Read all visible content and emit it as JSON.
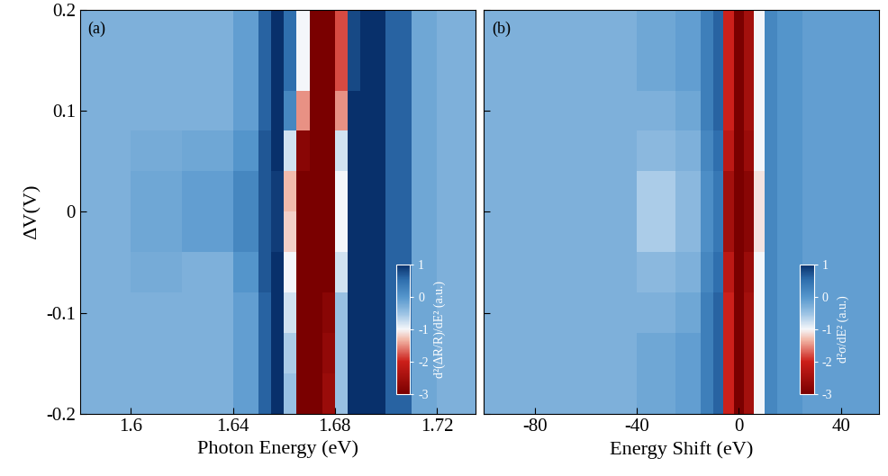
{
  "chart_data": [
    {
      "type": "heatmap",
      "panel_label": "(a)",
      "x_label": "Photon Energy (eV)",
      "y_label": "ΔV(V)",
      "xlim": [
        1.58,
        1.735
      ],
      "xticks": [
        1.6,
        1.64,
        1.68,
        1.72
      ],
      "ylim": [
        -0.2,
        0.2
      ],
      "yticks": [
        -0.2,
        -0.1,
        0,
        0.1,
        0.2
      ],
      "x_edges": [
        1.58,
        1.6,
        1.62,
        1.64,
        1.65,
        1.655,
        1.66,
        1.665,
        1.67,
        1.675,
        1.68,
        1.685,
        1.69,
        1.7,
        1.71,
        1.72,
        1.735
      ],
      "y_edges": [
        -0.2,
        -0.16,
        -0.12,
        -0.08,
        -0.04,
        0,
        0.04,
        0.08,
        0.12,
        0.16,
        0.2
      ],
      "cells": [
        [
          -0.3,
          -0.3,
          -0.3,
          -0.1,
          0.6,
          1,
          -0.5,
          -3,
          -3,
          -2.6,
          -0.5,
          1,
          1,
          0.6,
          -0.2,
          -0.3
        ],
        [
          -0.3,
          -0.3,
          -0.3,
          -0.1,
          0.6,
          1,
          -0.6,
          -3,
          -3,
          -2.7,
          -0.5,
          1,
          1,
          0.6,
          -0.2,
          -0.3
        ],
        [
          -0.3,
          -0.3,
          -0.3,
          -0.1,
          0.6,
          1,
          -0.8,
          -3,
          -3,
          -2.8,
          -0.5,
          1,
          1,
          0.6,
          -0.2,
          -0.3
        ],
        [
          -0.3,
          -0.25,
          -0.3,
          0,
          0.7,
          1,
          -1,
          -3,
          -3,
          -3,
          -0.8,
          1,
          1,
          0.6,
          -0.2,
          -0.3
        ],
        [
          -0.3,
          -0.2,
          -0.1,
          0.2,
          0.7,
          0.9,
          -1.2,
          -3,
          -3,
          -3,
          -1,
          1,
          1,
          0.6,
          -0.2,
          -0.3
        ],
        [
          -0.3,
          -0.2,
          -0.1,
          0.2,
          0.7,
          0.9,
          -1.3,
          -3,
          -3,
          -3,
          -1,
          1,
          1,
          0.6,
          -0.2,
          -0.3
        ],
        [
          -0.3,
          -0.25,
          -0.2,
          0,
          0.7,
          1,
          -0.8,
          -2.8,
          -3,
          -3,
          -0.8,
          1,
          1,
          0.6,
          -0.2,
          -0.3
        ],
        [
          -0.3,
          -0.3,
          -0.3,
          -0.1,
          0.6,
          1,
          0.2,
          -1.5,
          -3,
          -3,
          -1.5,
          1,
          1,
          0.6,
          -0.2,
          -0.3
        ],
        [
          -0.3,
          -0.3,
          -0.3,
          -0.1,
          0.6,
          1,
          0.5,
          -1,
          -3,
          -3,
          -1.8,
          0.8,
          1,
          0.6,
          -0.2,
          -0.3
        ],
        [
          -0.3,
          -0.3,
          -0.3,
          -0.1,
          0.6,
          1,
          0.5,
          -1,
          -3,
          -3,
          -1.8,
          0.8,
          1,
          0.6,
          -0.2,
          -0.3
        ]
      ],
      "colorbar": {
        "label": "d²(ΔR/R)/dE² (a.u.)",
        "range": [
          -3,
          1
        ],
        "ticks": [
          1,
          0,
          -1,
          -2,
          -3
        ]
      }
    },
    {
      "type": "heatmap",
      "panel_label": "(b)",
      "x_label": "Energy Shift (eV)",
      "tick_labels": "x",
      "xlim": [
        -100,
        55
      ],
      "xticks": [
        -80,
        -40,
        0,
        40
      ],
      "ylim": [
        -0.2,
        0.2
      ],
      "yticks": [
        -0.2,
        -0.1,
        0,
        0.1,
        0.2
      ],
      "x_edges": [
        -100,
        -80,
        -60,
        -40,
        -25,
        -15,
        -10,
        -6,
        -2,
        2,
        6,
        10,
        15,
        25,
        40,
        55
      ],
      "y_edges": [
        -0.2,
        -0.16,
        -0.12,
        -0.08,
        -0.04,
        0,
        0.04,
        0.08,
        0.12,
        0.16,
        0.2
      ],
      "cells": [
        [
          -0.3,
          -0.3,
          -0.3,
          -0.2,
          -0.1,
          0.3,
          0.6,
          -2,
          -3,
          -2.5,
          -1,
          0.2,
          0,
          -0.1,
          -0.1
        ],
        [
          -0.3,
          -0.3,
          -0.3,
          -0.2,
          -0.1,
          0.3,
          0.6,
          -2,
          -3,
          -2.5,
          -1,
          0.2,
          0,
          -0.1,
          -0.1
        ],
        [
          -0.3,
          -0.3,
          -0.3,
          -0.3,
          -0.2,
          0.3,
          0.6,
          -2,
          -3,
          -2.5,
          -1,
          0.2,
          0,
          -0.1,
          -0.1
        ],
        [
          -0.3,
          -0.3,
          -0.3,
          -0.4,
          -0.3,
          0.2,
          0.5,
          -2.2,
          -3,
          -2.6,
          -1,
          0.2,
          0,
          -0.1,
          -0.1
        ],
        [
          -0.3,
          -0.3,
          -0.3,
          -0.6,
          -0.4,
          0.1,
          0.4,
          -2.5,
          -3,
          -2.8,
          -1.1,
          0.2,
          0,
          -0.1,
          -0.1
        ],
        [
          -0.3,
          -0.3,
          -0.3,
          -0.6,
          -0.4,
          0.1,
          0.4,
          -2.5,
          -3,
          -2.8,
          -1.1,
          0.2,
          0,
          -0.1,
          -0.1
        ],
        [
          -0.3,
          -0.3,
          -0.3,
          -0.4,
          -0.3,
          0.2,
          0.5,
          -2.2,
          -3,
          -2.6,
          -1,
          0.2,
          0,
          -0.1,
          -0.1
        ],
        [
          -0.3,
          -0.3,
          -0.3,
          -0.3,
          -0.2,
          0.3,
          0.6,
          -2,
          -3,
          -2.5,
          -1,
          0.2,
          0,
          -0.1,
          -0.1
        ],
        [
          -0.3,
          -0.3,
          -0.3,
          -0.2,
          -0.1,
          0.3,
          0.6,
          -2,
          -3,
          -2.5,
          -1,
          0.2,
          0,
          -0.1,
          -0.1
        ],
        [
          -0.3,
          -0.3,
          -0.3,
          -0.2,
          -0.1,
          0.3,
          0.6,
          -2,
          -3,
          -2.5,
          -1,
          0.2,
          0,
          -0.1,
          -0.1
        ]
      ],
      "colorbar": {
        "label": "d²σ/dE² (a.u.)",
        "range": [
          -3,
          1
        ],
        "ticks": [
          1,
          0,
          -1,
          -2,
          -3
        ]
      }
    }
  ]
}
